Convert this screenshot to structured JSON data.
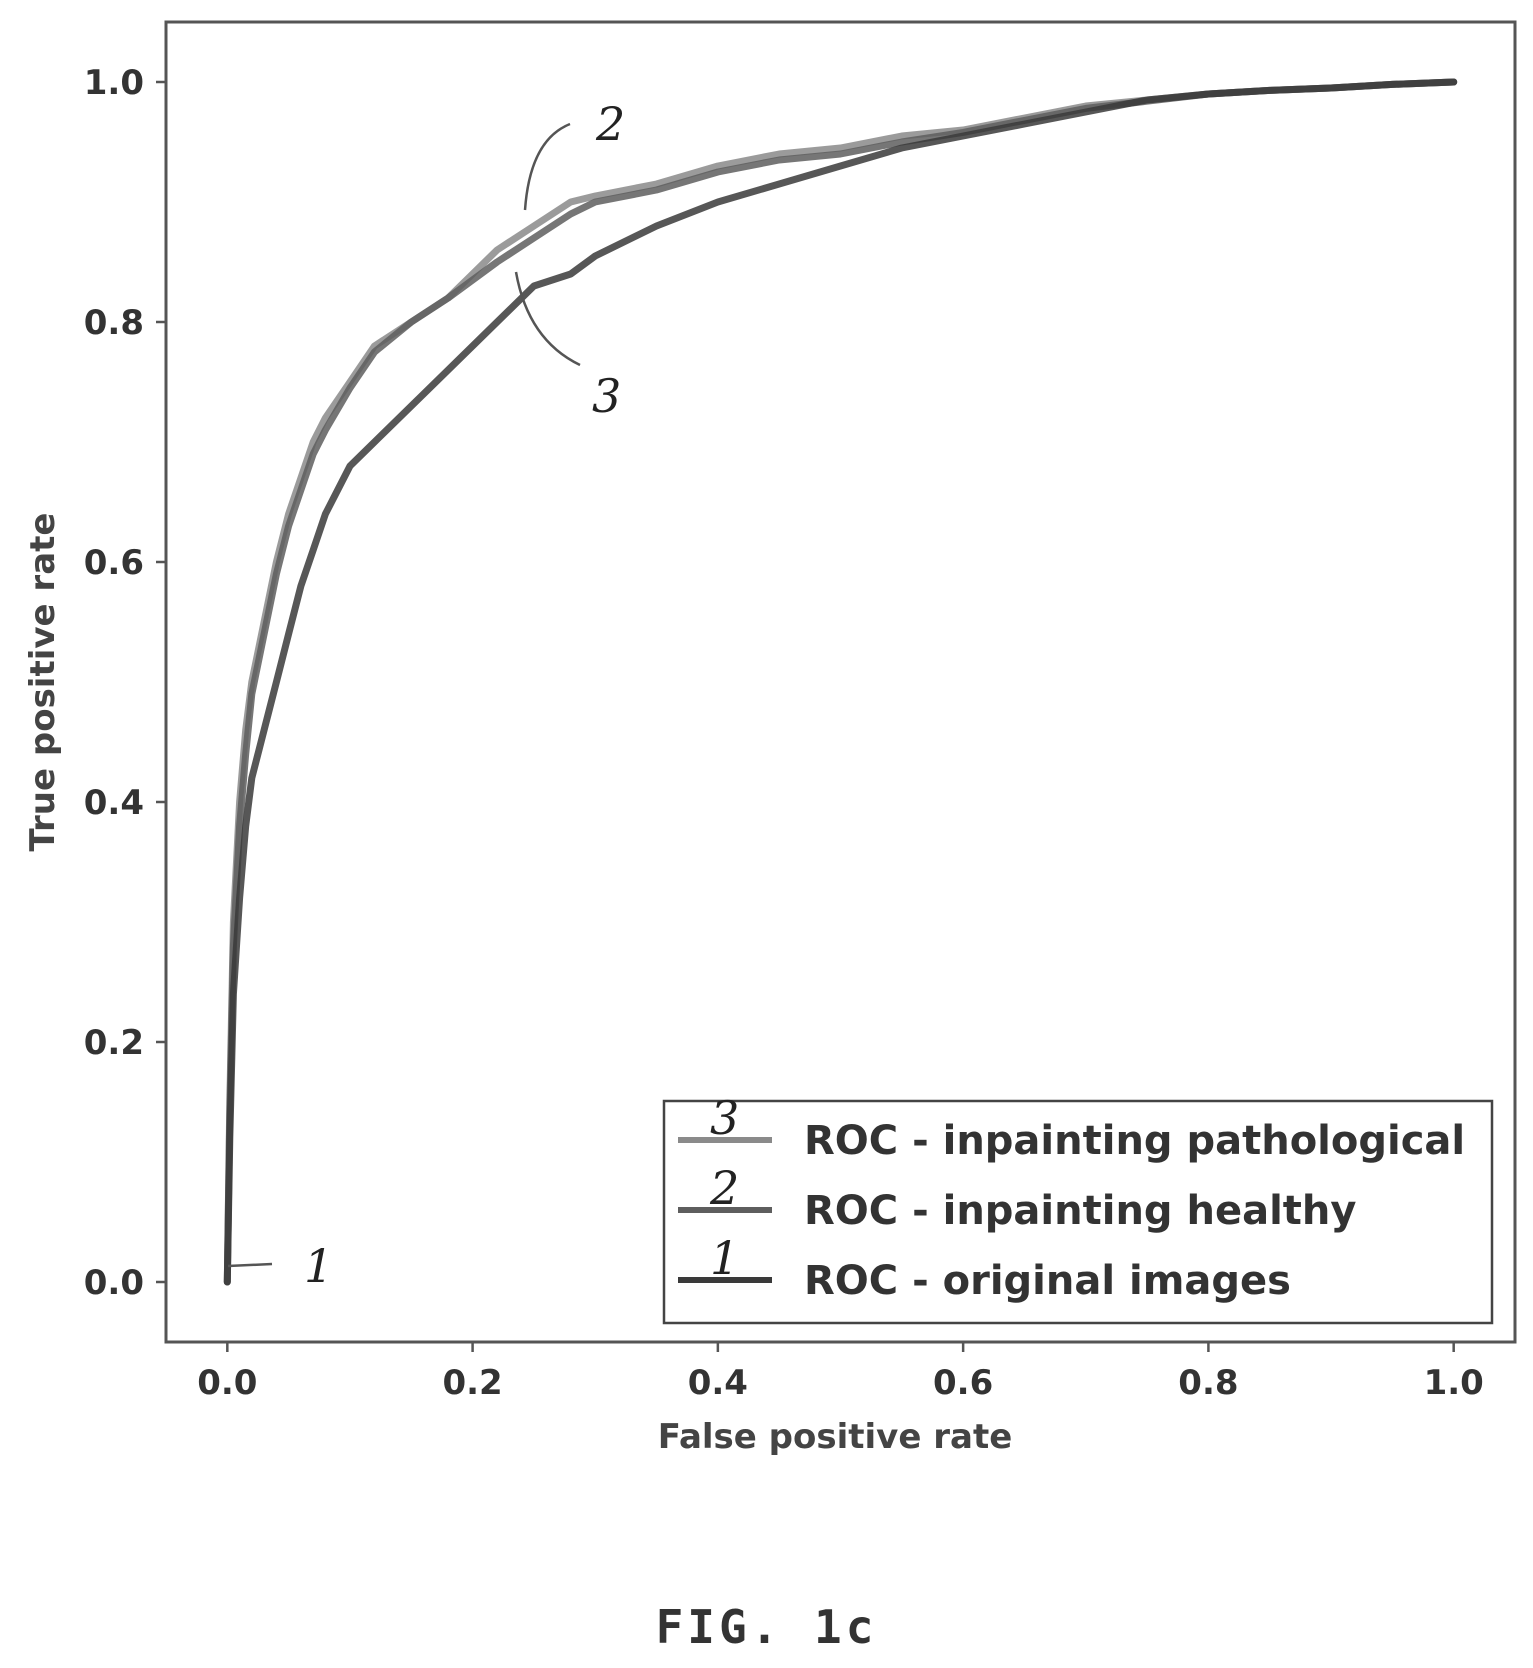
{
  "figure": {
    "caption": "FIG. 1c"
  },
  "chart_data": {
    "type": "line",
    "title": "",
    "xlabel": "False positive rate",
    "ylabel": "True positive rate",
    "xlim": [
      -0.05,
      1.05
    ],
    "ylim": [
      -0.05,
      1.05
    ],
    "xticks": [
      "0.0",
      "0.2",
      "0.4",
      "0.6",
      "0.8",
      "1.0"
    ],
    "yticks": [
      "0.0",
      "0.2",
      "0.4",
      "0.6",
      "0.8",
      "1.0"
    ],
    "grid": false,
    "legend_position": "bottom-right",
    "series": [
      {
        "name": "ROC - inpainting pathological",
        "marker": "3",
        "color": "#8a8a8a",
        "x": [
          0,
          0.002,
          0.005,
          0.01,
          0.015,
          0.02,
          0.03,
          0.04,
          0.05,
          0.06,
          0.07,
          0.08,
          0.1,
          0.12,
          0.15,
          0.18,
          0.2,
          0.22,
          0.25,
          0.28,
          0.3,
          0.35,
          0.4,
          0.45,
          0.5,
          0.55,
          0.6,
          0.65,
          0.7,
          0.75,
          0.8,
          0.85,
          0.9,
          0.95,
          1.0
        ],
        "y": [
          0,
          0.15,
          0.3,
          0.4,
          0.46,
          0.5,
          0.55,
          0.6,
          0.64,
          0.67,
          0.7,
          0.72,
          0.75,
          0.78,
          0.8,
          0.82,
          0.84,
          0.86,
          0.88,
          0.9,
          0.905,
          0.915,
          0.93,
          0.94,
          0.945,
          0.955,
          0.96,
          0.97,
          0.98,
          0.985,
          0.99,
          0.993,
          0.995,
          0.998,
          1.0
        ]
      },
      {
        "name": "ROC - inpainting healthy",
        "marker": "2",
        "color": "#5e5e5e",
        "x": [
          0,
          0.002,
          0.005,
          0.01,
          0.015,
          0.02,
          0.03,
          0.04,
          0.05,
          0.06,
          0.07,
          0.08,
          0.1,
          0.12,
          0.15,
          0.18,
          0.2,
          0.22,
          0.25,
          0.28,
          0.3,
          0.35,
          0.4,
          0.45,
          0.5,
          0.55,
          0.6,
          0.65,
          0.7,
          0.75,
          0.8,
          0.85,
          0.9,
          0.95,
          1.0
        ],
        "y": [
          0,
          0.14,
          0.28,
          0.38,
          0.44,
          0.49,
          0.54,
          0.59,
          0.63,
          0.66,
          0.69,
          0.71,
          0.745,
          0.775,
          0.8,
          0.82,
          0.835,
          0.85,
          0.87,
          0.89,
          0.9,
          0.91,
          0.925,
          0.935,
          0.94,
          0.95,
          0.958,
          0.968,
          0.978,
          0.984,
          0.99,
          0.993,
          0.995,
          0.998,
          1.0
        ]
      },
      {
        "name": "ROC - original images",
        "marker": "1",
        "color": "#3a3a3a",
        "x": [
          0,
          0.002,
          0.005,
          0.01,
          0.015,
          0.02,
          0.03,
          0.04,
          0.05,
          0.06,
          0.07,
          0.08,
          0.09,
          0.1,
          0.12,
          0.15,
          0.18,
          0.2,
          0.22,
          0.25,
          0.28,
          0.3,
          0.35,
          0.4,
          0.45,
          0.5,
          0.55,
          0.6,
          0.65,
          0.7,
          0.75,
          0.8,
          0.85,
          0.9,
          0.95,
          1.0
        ],
        "y": [
          0,
          0.12,
          0.24,
          0.32,
          0.38,
          0.42,
          0.46,
          0.5,
          0.54,
          0.58,
          0.61,
          0.64,
          0.66,
          0.68,
          0.7,
          0.73,
          0.76,
          0.78,
          0.8,
          0.83,
          0.84,
          0.855,
          0.88,
          0.9,
          0.915,
          0.93,
          0.945,
          0.955,
          0.965,
          0.975,
          0.985,
          0.99,
          0.993,
          0.995,
          0.998,
          1.0
        ]
      }
    ]
  }
}
